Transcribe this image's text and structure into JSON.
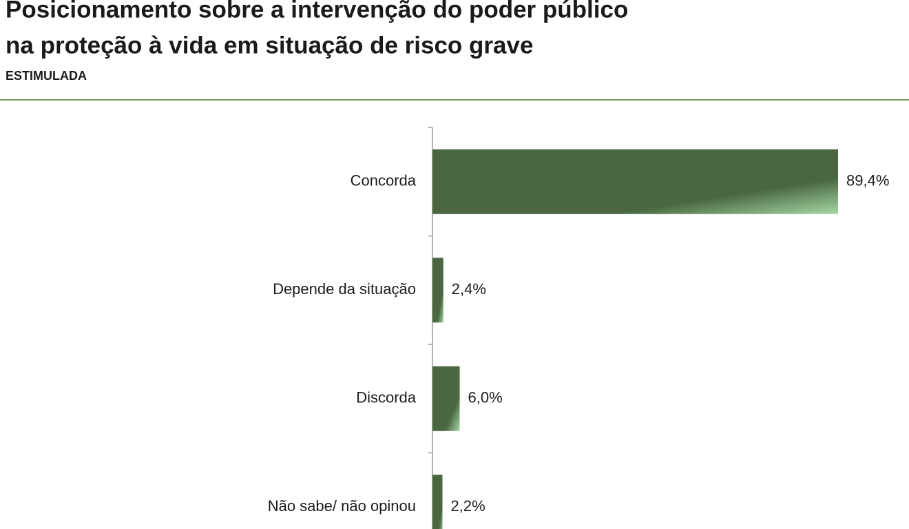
{
  "chart_data": {
    "type": "hbar",
    "title": [
      "Posicionamento sobre a intervenção do poder público",
      "na proteção à vida em situação de risco grave"
    ],
    "subtitle": "ESTIMULADA",
    "categories": [
      "Concorda",
      "Depende da situação",
      "Discorda",
      "Não sabe/ não opinou"
    ],
    "values": [
      89.4,
      2.4,
      6.0,
      2.2
    ],
    "value_labels": [
      "89,4%",
      "2,4%",
      "6,0%",
      "2,2%"
    ],
    "color": "#4a6741"
  }
}
